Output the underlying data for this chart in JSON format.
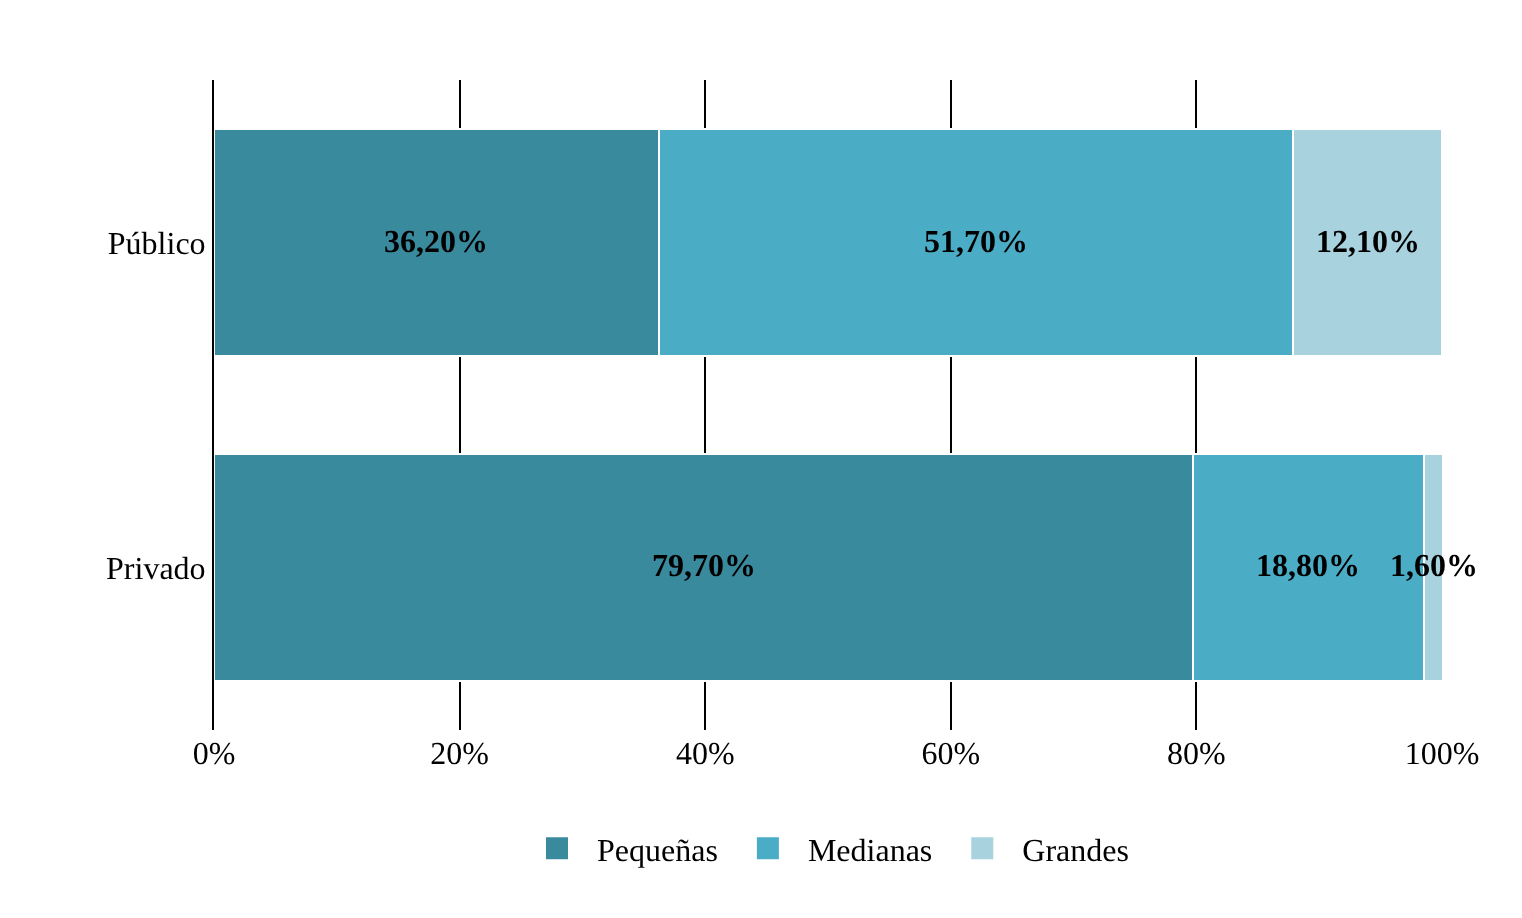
{
  "chart_data": {
    "type": "bar",
    "orientation": "horizontal",
    "stacked": true,
    "categories": [
      "Público",
      "Privado"
    ],
    "series": [
      {
        "name": "Pequeñas",
        "color": "#3a8a9e",
        "values": [
          36.2,
          79.7
        ],
        "value_labels": [
          "36,20%",
          "79,70%"
        ]
      },
      {
        "name": "Medianas",
        "color": "#4bacc6",
        "values": [
          51.7,
          18.8
        ],
        "value_labels": [
          "51,70%",
          "18,80%"
        ]
      },
      {
        "name": "Grandes",
        "color": "#a8d2de",
        "values": [
          12.1,
          1.6
        ],
        "value_labels": [
          "12,10%",
          "1,60%"
        ]
      }
    ],
    "xlim": [
      0,
      100
    ],
    "xticks": [
      {
        "value": 0,
        "label": "0%"
      },
      {
        "value": 20,
        "label": "20%"
      },
      {
        "value": 40,
        "label": "40%"
      },
      {
        "value": 60,
        "label": "60%"
      },
      {
        "value": 80,
        "label": "80%"
      },
      {
        "value": 100,
        "label": "100%"
      }
    ],
    "grid": "x",
    "legend": "bottom"
  }
}
